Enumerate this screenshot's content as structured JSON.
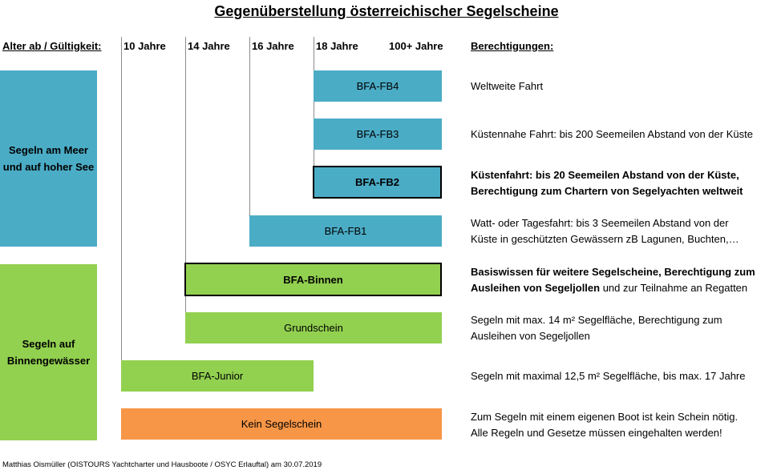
{
  "title": "Gegenüberstellung österreichischer Segelscheine",
  "header": {
    "age_label": "Alter ab / Gültigkeit:",
    "ages": [
      "10 Jahre",
      "14 Jahre",
      "16 Jahre",
      "18 Jahre",
      "100+ Jahre"
    ],
    "rights_label": "Berechtigungen:"
  },
  "categories": {
    "sea": "Segeln am Meer und auf hoher See",
    "inland": "Segeln auf Binnengewässer"
  },
  "licenses": {
    "fb4": "BFA-FB4",
    "fb3": "BFA-FB3",
    "fb2": "BFA-FB2",
    "fb1": "BFA-FB1",
    "binnen": "BFA-Binnen",
    "grund": "Grundschein",
    "junior": "BFA-Junior",
    "none": "Kein Segelschein"
  },
  "descriptions": {
    "fb4": "Weltweite Fahrt",
    "fb3": "Küstennahe Fahrt: bis 200 Seemeilen Abstand von der Küste",
    "fb2_l1": "Küstenfahrt: bis 20 Seemeilen Abstand von der Küste,",
    "fb2_l2": "Berechtigung zum Chartern von Segelyachten weltweit",
    "fb1_l1": "Watt- oder Tagesfahrt: bis 3 Seemeilen Abstand von der",
    "fb1_l2": "Küste in geschützten Gewässern zB Lagunen, Buchten,…",
    "binnen_l1": "Basiswissen für weitere Segelscheine, Berechtigung zum",
    "binnen_l2_bold": "Ausleihen von Segeljollen",
    "binnen_l2_rest": " und zur Teilnahme an Regatten",
    "grund_l1": "Segeln mit max. 14 m² Segelfläche, Berechtigung zum",
    "grund_l2": "Ausleihen von Segeljollen",
    "junior": "Segeln mit maximal 12,5 m² Segelfläche, bis max. 17 Jahre",
    "none_l1": "Zum Segeln mit einem eigenen Boot ist kein Schein nötig.",
    "none_l2": "Alle Regeln und Gesetze müssen eingehalten werden!"
  },
  "colors": {
    "sea": "#4bacc6",
    "inland": "#92d050",
    "none": "#f79646",
    "grid": "#8c8c8c"
  },
  "footer": "Matthias Oismüller (OISTOURS Yachtcharter und Hausboote / OSYC Erlauftal) am 30.07.2019"
}
